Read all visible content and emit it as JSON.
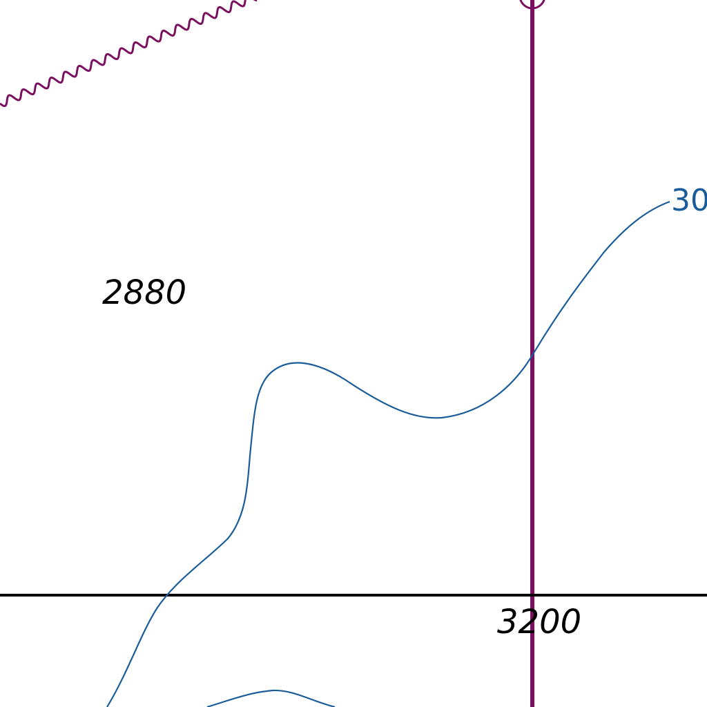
{
  "map": {
    "labels": {
      "area_number_1": "2880",
      "area_number_2": "3200",
      "contour_label": "30"
    },
    "colors": {
      "background": "#ffffff",
      "contour": "#1a5c99",
      "boundary": "#7a1060",
      "road": "#000000",
      "label_text": "#000000"
    }
  }
}
